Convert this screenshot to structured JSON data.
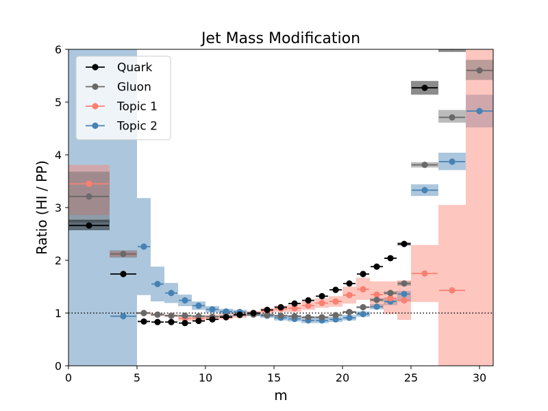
{
  "chart_data": {
    "type": "scatter",
    "title": "Jet Mass Modification",
    "xlabel": "m",
    "ylabel": "Ratio (HI / PP)",
    "xlim": [
      0,
      31
    ],
    "ylim": [
      0,
      6
    ],
    "xticks": [
      0,
      5,
      10,
      15,
      20,
      25,
      30
    ],
    "yticks": [
      0,
      1,
      2,
      3,
      4,
      5,
      6
    ],
    "reference_line": 1,
    "legend_position": "upper-left",
    "series": [
      {
        "name": "Quark",
        "color": "#000000",
        "band_color": "#000000",
        "points": [
          {
            "x0": 0,
            "x1": 3,
            "y": 2.66,
            "lo": 2.57,
            "hi": 2.77
          },
          {
            "x0": 3,
            "x1": 5,
            "y": 1.74,
            "lo": 1.74,
            "hi": 1.74
          },
          {
            "x0": 5,
            "x1": 6,
            "y": 0.84,
            "lo": 0.84,
            "hi": 0.84
          },
          {
            "x0": 6,
            "x1": 7,
            "y": 0.83,
            "lo": 0.83,
            "hi": 0.83
          },
          {
            "x0": 7,
            "x1": 8,
            "y": 0.83,
            "lo": 0.83,
            "hi": 0.83
          },
          {
            "x0": 8,
            "x1": 9,
            "y": 0.81,
            "lo": 0.81,
            "hi": 0.81
          },
          {
            "x0": 9,
            "x1": 10,
            "y": 0.85,
            "lo": 0.85,
            "hi": 0.85
          },
          {
            "x0": 10,
            "x1": 11,
            "y": 0.88,
            "lo": 0.88,
            "hi": 0.88
          },
          {
            "x0": 11,
            "x1": 12,
            "y": 0.92,
            "lo": 0.92,
            "hi": 0.92
          },
          {
            "x0": 12,
            "x1": 13,
            "y": 0.97,
            "lo": 0.97,
            "hi": 0.97
          },
          {
            "x0": 13,
            "x1": 14,
            "y": 1.0,
            "lo": 1.0,
            "hi": 1.0
          },
          {
            "x0": 14,
            "x1": 15,
            "y": 1.06,
            "lo": 1.06,
            "hi": 1.06
          },
          {
            "x0": 15,
            "x1": 16,
            "y": 1.11,
            "lo": 1.11,
            "hi": 1.11
          },
          {
            "x0": 16,
            "x1": 17,
            "y": 1.18,
            "lo": 1.18,
            "hi": 1.18
          },
          {
            "x0": 17,
            "x1": 18,
            "y": 1.24,
            "lo": 1.24,
            "hi": 1.24
          },
          {
            "x0": 18,
            "x1": 19,
            "y": 1.32,
            "lo": 1.32,
            "hi": 1.32
          },
          {
            "x0": 19,
            "x1": 20,
            "y": 1.44,
            "lo": 1.44,
            "hi": 1.44
          },
          {
            "x0": 20,
            "x1": 21,
            "y": 1.56,
            "lo": 1.56,
            "hi": 1.56
          },
          {
            "x0": 21,
            "x1": 22,
            "y": 1.74,
            "lo": 1.74,
            "hi": 1.74
          },
          {
            "x0": 22,
            "x1": 23,
            "y": 1.88,
            "lo": 1.88,
            "hi": 1.88
          },
          {
            "x0": 23,
            "x1": 24,
            "y": 2.04,
            "lo": 2.04,
            "hi": 2.04
          },
          {
            "x0": 24,
            "x1": 25,
            "y": 2.31,
            "lo": 2.28,
            "hi": 2.34
          },
          {
            "x0": 25,
            "x1": 27,
            "y": 5.27,
            "lo": 5.14,
            "hi": 5.4
          },
          {
            "x0": 27,
            "x1": 29,
            "y": 6.05,
            "lo": 5.95,
            "hi": 6.1
          }
        ]
      },
      {
        "name": "Gluon",
        "color": "#696969",
        "band_color": "#696969",
        "points": [
          {
            "x0": 0,
            "x1": 3,
            "y": 3.21,
            "lo": 2.72,
            "hi": 3.68
          },
          {
            "x0": 3,
            "x1": 5,
            "y": 2.12,
            "lo": 2.05,
            "hi": 2.19
          },
          {
            "x0": 5,
            "x1": 6,
            "y": 1.0,
            "lo": 0.98,
            "hi": 1.02
          },
          {
            "x0": 6,
            "x1": 7,
            "y": 0.97,
            "lo": 0.95,
            "hi": 0.99
          },
          {
            "x0": 7,
            "x1": 8,
            "y": 0.95,
            "lo": 0.93,
            "hi": 0.97
          },
          {
            "x0": 8,
            "x1": 9,
            "y": 0.95,
            "lo": 0.93,
            "hi": 0.97
          },
          {
            "x0": 9,
            "x1": 10,
            "y": 0.94,
            "lo": 0.92,
            "hi": 0.96
          },
          {
            "x0": 10,
            "x1": 11,
            "y": 0.93,
            "lo": 0.91,
            "hi": 0.95
          },
          {
            "x0": 11,
            "x1": 12,
            "y": 0.94,
            "lo": 0.92,
            "hi": 0.96
          },
          {
            "x0": 12,
            "x1": 13,
            "y": 0.96,
            "lo": 0.94,
            "hi": 0.98
          },
          {
            "x0": 13,
            "x1": 14,
            "y": 0.97,
            "lo": 0.95,
            "hi": 0.99
          },
          {
            "x0": 14,
            "x1": 15,
            "y": 0.96,
            "lo": 0.94,
            "hi": 0.98
          },
          {
            "x0": 15,
            "x1": 16,
            "y": 0.95,
            "lo": 0.93,
            "hi": 0.97
          },
          {
            "x0": 16,
            "x1": 17,
            "y": 0.94,
            "lo": 0.92,
            "hi": 0.96
          },
          {
            "x0": 17,
            "x1": 18,
            "y": 0.92,
            "lo": 0.9,
            "hi": 0.94
          },
          {
            "x0": 18,
            "x1": 19,
            "y": 0.92,
            "lo": 0.9,
            "hi": 0.94
          },
          {
            "x0": 19,
            "x1": 20,
            "y": 0.96,
            "lo": 0.94,
            "hi": 0.98
          },
          {
            "x0": 20,
            "x1": 21,
            "y": 1.02,
            "lo": 1.0,
            "hi": 1.04
          },
          {
            "x0": 21,
            "x1": 22,
            "y": 1.11,
            "lo": 1.09,
            "hi": 1.13
          },
          {
            "x0": 22,
            "x1": 23,
            "y": 1.25,
            "lo": 1.22,
            "hi": 1.28
          },
          {
            "x0": 23,
            "x1": 24,
            "y": 1.38,
            "lo": 1.35,
            "hi": 1.41
          },
          {
            "x0": 24,
            "x1": 25,
            "y": 1.56,
            "lo": 1.52,
            "hi": 1.6
          },
          {
            "x0": 25,
            "x1": 27,
            "y": 3.81,
            "lo": 3.76,
            "hi": 3.86
          },
          {
            "x0": 27,
            "x1": 29,
            "y": 4.71,
            "lo": 4.61,
            "hi": 4.85
          },
          {
            "x0": 29,
            "x1": 31,
            "y": 5.6,
            "lo": 5.42,
            "hi": 5.8
          }
        ]
      },
      {
        "name": "Topic 1",
        "color": "#fa8072",
        "band_color": "#fa8072",
        "points": [
          {
            "x0": 0,
            "x1": 3,
            "y": 3.45,
            "lo": 2.86,
            "hi": 3.81
          },
          {
            "x0": 3,
            "x1": 5,
            "y": 2.12,
            "lo": 2.07,
            "hi": 2.17
          },
          {
            "x0": 5,
            "x1": 6,
            "y": 1.0,
            "lo": 0.98,
            "hi": 1.02
          },
          {
            "x0": 6,
            "x1": 7,
            "y": 0.97,
            "lo": 0.95,
            "hi": 0.99
          },
          {
            "x0": 7,
            "x1": 8,
            "y": 0.95,
            "lo": 0.93,
            "hi": 0.97
          },
          {
            "x0": 8,
            "x1": 9,
            "y": 0.9,
            "lo": 0.85,
            "hi": 0.95
          },
          {
            "x0": 9,
            "x1": 10,
            "y": 0.9,
            "lo": 0.85,
            "hi": 0.95
          },
          {
            "x0": 10,
            "x1": 11,
            "y": 0.92,
            "lo": 0.87,
            "hi": 0.97
          },
          {
            "x0": 11,
            "x1": 12,
            "y": 0.93,
            "lo": 0.88,
            "hi": 0.98
          },
          {
            "x0": 12,
            "x1": 13,
            "y": 0.96,
            "lo": 0.91,
            "hi": 1.01
          },
          {
            "x0": 13,
            "x1": 14,
            "y": 1.0,
            "lo": 0.96,
            "hi": 1.04
          },
          {
            "x0": 14,
            "x1": 15,
            "y": 1.04,
            "lo": 0.99,
            "hi": 1.09
          },
          {
            "x0": 15,
            "x1": 16,
            "y": 1.08,
            "lo": 1.02,
            "hi": 1.14
          },
          {
            "x0": 16,
            "x1": 17,
            "y": 1.09,
            "lo": 1.02,
            "hi": 1.16
          },
          {
            "x0": 17,
            "x1": 18,
            "y": 1.14,
            "lo": 1.06,
            "hi": 1.22
          },
          {
            "x0": 18,
            "x1": 19,
            "y": 1.19,
            "lo": 1.1,
            "hi": 1.28
          },
          {
            "x0": 19,
            "x1": 20,
            "y": 1.22,
            "lo": 1.12,
            "hi": 1.32
          },
          {
            "x0": 20,
            "x1": 21,
            "y": 1.34,
            "lo": 1.18,
            "hi": 1.5
          },
          {
            "x0": 21,
            "x1": 22,
            "y": 1.45,
            "lo": 1.25,
            "hi": 1.67
          },
          {
            "x0": 22,
            "x1": 23,
            "y": 1.35,
            "lo": 1.1,
            "hi": 1.6
          },
          {
            "x0": 23,
            "x1": 24,
            "y": 1.28,
            "lo": 0.98,
            "hi": 1.6
          },
          {
            "x0": 24,
            "x1": 25,
            "y": 1.24,
            "lo": 0.87,
            "hi": 1.62
          },
          {
            "x0": 25,
            "x1": 27,
            "y": 1.75,
            "lo": 1.21,
            "hi": 2.29
          },
          {
            "x0": 27,
            "x1": 29,
            "y": 1.43,
            "lo": 0.0,
            "hi": 3.05
          },
          {
            "x0": 29,
            "x1": 31,
            "y": 5.6,
            "lo": 0.0,
            "hi": 6.0
          }
        ]
      },
      {
        "name": "Topic 2",
        "color": "#4682b4",
        "band_color": "#4682b4",
        "points": [
          {
            "x0": 0,
            "x1": 3,
            "y": 2.66,
            "lo": 0.0,
            "hi": 6.0
          },
          {
            "x0": 3,
            "x1": 5,
            "y": 0.94,
            "lo": 0.0,
            "hi": 6.0
          },
          {
            "x0": 5,
            "x1": 6,
            "y": 2.26,
            "lo": 1.34,
            "hi": 3.18
          },
          {
            "x0": 6,
            "x1": 7,
            "y": 1.55,
            "lo": 1.22,
            "hi": 1.88
          },
          {
            "x0": 7,
            "x1": 8,
            "y": 1.38,
            "lo": 1.19,
            "hi": 1.57
          },
          {
            "x0": 8,
            "x1": 9,
            "y": 1.24,
            "lo": 1.13,
            "hi": 1.35
          },
          {
            "x0": 9,
            "x1": 10,
            "y": 1.14,
            "lo": 1.06,
            "hi": 1.22
          },
          {
            "x0": 10,
            "x1": 11,
            "y": 1.07,
            "lo": 1.01,
            "hi": 1.13
          },
          {
            "x0": 11,
            "x1": 12,
            "y": 1.03,
            "lo": 0.98,
            "hi": 1.08
          },
          {
            "x0": 12,
            "x1": 13,
            "y": 1.02,
            "lo": 0.98,
            "hi": 1.06
          },
          {
            "x0": 13,
            "x1": 14,
            "y": 0.98,
            "lo": 0.94,
            "hi": 1.02
          },
          {
            "x0": 14,
            "x1": 15,
            "y": 0.95,
            "lo": 0.91,
            "hi": 0.99
          },
          {
            "x0": 15,
            "x1": 16,
            "y": 0.91,
            "lo": 0.86,
            "hi": 0.96
          },
          {
            "x0": 16,
            "x1": 17,
            "y": 0.89,
            "lo": 0.84,
            "hi": 0.94
          },
          {
            "x0": 17,
            "x1": 18,
            "y": 0.86,
            "lo": 0.81,
            "hi": 0.91
          },
          {
            "x0": 18,
            "x1": 19,
            "y": 0.86,
            "lo": 0.81,
            "hi": 0.91
          },
          {
            "x0": 19,
            "x1": 20,
            "y": 0.88,
            "lo": 0.83,
            "hi": 0.93
          },
          {
            "x0": 20,
            "x1": 21,
            "y": 0.91,
            "lo": 0.86,
            "hi": 0.96
          },
          {
            "x0": 21,
            "x1": 22,
            "y": 0.98,
            "lo": 0.93,
            "hi": 1.03
          },
          {
            "x0": 22,
            "x1": 23,
            "y": 1.12,
            "lo": 1.07,
            "hi": 1.17
          },
          {
            "x0": 23,
            "x1": 24,
            "y": 1.22,
            "lo": 1.15,
            "hi": 1.29
          },
          {
            "x0": 24,
            "x1": 25,
            "y": 1.36,
            "lo": 1.22,
            "hi": 1.42
          },
          {
            "x0": 25,
            "x1": 27,
            "y": 3.33,
            "lo": 3.22,
            "hi": 3.44
          },
          {
            "x0": 27,
            "x1": 29,
            "y": 3.87,
            "lo": 3.71,
            "hi": 4.04
          },
          {
            "x0": 29,
            "x1": 31,
            "y": 4.83,
            "lo": 4.52,
            "hi": 5.14
          }
        ]
      }
    ]
  }
}
